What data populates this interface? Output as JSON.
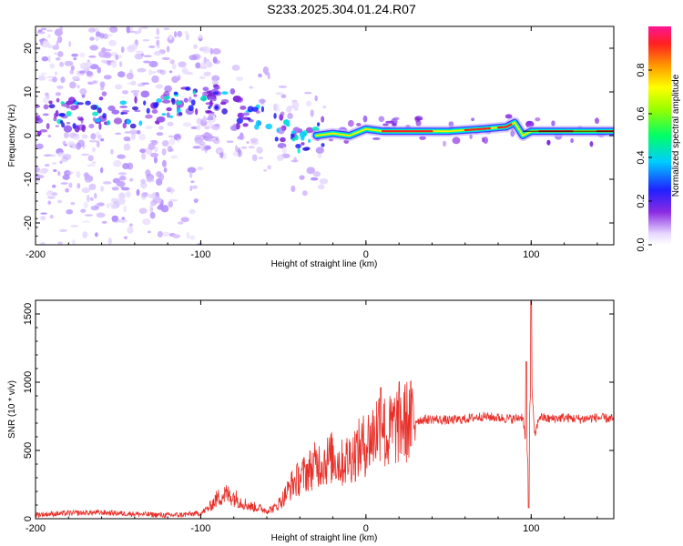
{
  "title": "S233.2025.304.01.24.R07",
  "chart_data": [
    {
      "type": "heatmap",
      "xlabel": "Height of straight line (km)",
      "ylabel": "Frequency (Hz)",
      "xlim": [
        -200,
        150
      ],
      "ylim": [
        -25,
        25
      ],
      "xticks": [
        -200,
        -100,
        0,
        100
      ],
      "yticks": [
        -20,
        -10,
        0,
        10,
        20
      ],
      "colorbar": {
        "label": "Normalized spectral amplitude",
        "range": [
          0,
          1
        ],
        "ticks": [
          "0.0",
          "0.2",
          "0.4",
          "0.6",
          "0.8"
        ]
      },
      "ridge": {
        "description": "frequency of the dominant spectral peak vs height",
        "x": [
          -195,
          -180,
          -160,
          -140,
          -120,
          -100,
          -90,
          -80,
          -70,
          -60,
          -50,
          -40,
          -30,
          -20,
          -10,
          0,
          10,
          30,
          50,
          70,
          85,
          90,
          95,
          100,
          120,
          150
        ],
        "y": [
          4,
          5,
          6,
          5,
          7,
          9,
          8,
          6,
          5,
          3,
          1,
          -2,
          0,
          0.5,
          0,
          1.5,
          1,
          1,
          1,
          1.5,
          2,
          3,
          0,
          1,
          1,
          1
        ]
      }
    },
    {
      "type": "line",
      "xlabel": "Height of straight line (km)",
      "ylabel": "SNR (10 * v/v)",
      "xlim": [
        -200,
        150
      ],
      "ylim": [
        0,
        1600
      ],
      "xticks": [
        -200,
        -100,
        0,
        100
      ],
      "yticks": [
        0,
        500,
        1000,
        1500
      ],
      "color": "#e8302a",
      "series": [
        {
          "name": "SNR",
          "x": [
            -200,
            -180,
            -160,
            -140,
            -120,
            -110,
            -100,
            -95,
            -90,
            -85,
            -80,
            -75,
            -70,
            -65,
            -60,
            -55,
            -50,
            -45,
            -40,
            -35,
            -30,
            -25,
            -20,
            -15,
            -10,
            -5,
            0,
            5,
            8,
            10,
            12,
            15,
            20,
            30,
            40,
            50,
            60,
            70,
            80,
            90,
            95,
            98,
            100,
            102,
            105,
            110,
            120,
            130,
            140,
            150
          ],
          "y": [
            30,
            40,
            45,
            35,
            25,
            30,
            40,
            80,
            150,
            180,
            160,
            120,
            90,
            80,
            60,
            80,
            150,
            250,
            300,
            350,
            400,
            420,
            450,
            400,
            450,
            500,
            550,
            620,
            700,
            800,
            550,
            650,
            700,
            720,
            730,
            720,
            730,
            750,
            740,
            730,
            750,
            400,
            1100,
            600,
            750,
            730,
            740,
            730,
            740,
            730
          ]
        }
      ]
    }
  ]
}
